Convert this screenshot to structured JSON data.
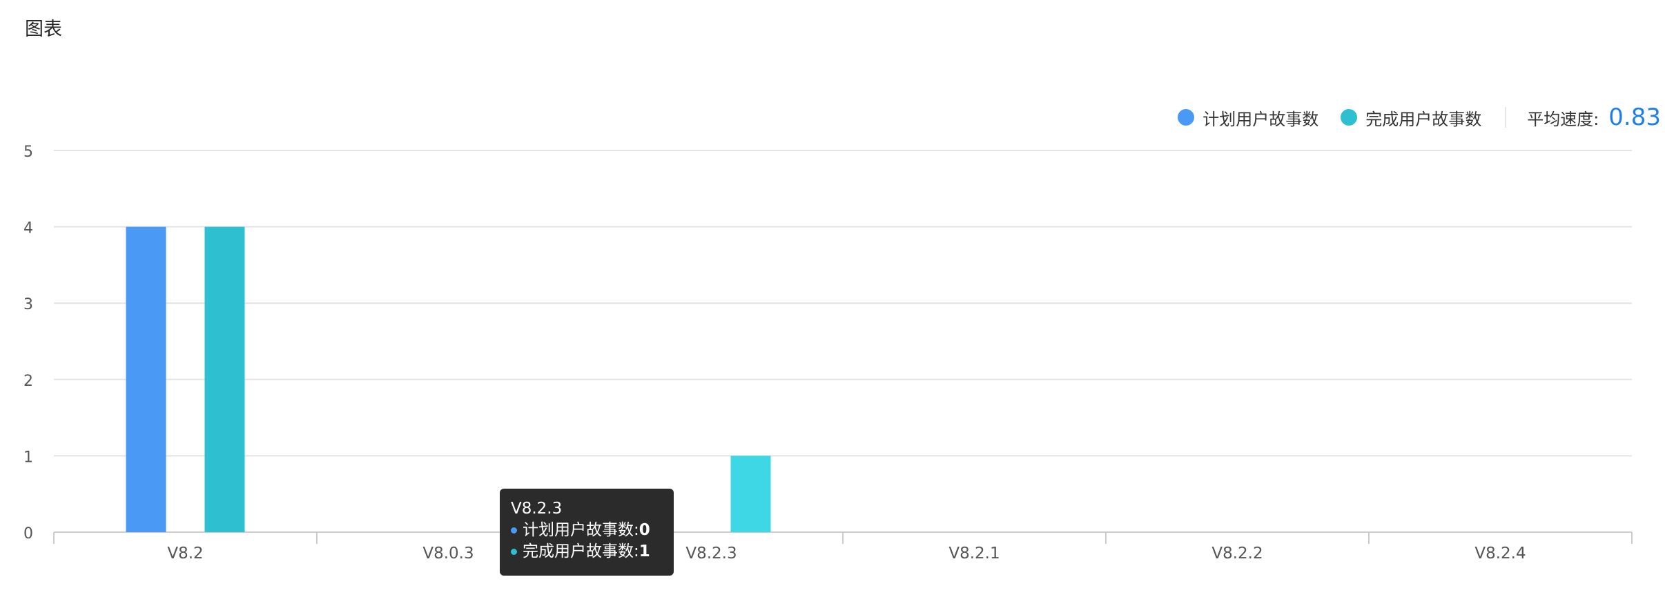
{
  "panel": {
    "title": "图表"
  },
  "legend": {
    "velocity_label": "平均速度:",
    "velocity_value": "0.83"
  },
  "tooltip": {
    "title": "V8.2.3",
    "rows": [
      {
        "label": "计划用户故事数: ",
        "value": "0",
        "color": "#4a9af5"
      },
      {
        "label": "完成用户故事数: ",
        "value": "1",
        "color": "#2ec0d1"
      }
    ]
  },
  "chart_data": {
    "type": "bar",
    "categories": [
      "V8.2",
      "V8.0.3",
      "V8.2.3",
      "V8.2.1",
      "V8.2.2",
      "V8.2.4"
    ],
    "series": [
      {
        "name": "计划用户故事数",
        "values": [
          4,
          0,
          0,
          0,
          0,
          0
        ],
        "color": "#4a9af5"
      },
      {
        "name": "完成用户故事数",
        "values": [
          4,
          0,
          1,
          0,
          0,
          0
        ],
        "color": "#2ec0d1"
      }
    ],
    "highlight_category": "V8.2.3",
    "highlight_color": "#3dd7e6",
    "yticks": [
      0,
      1,
      2,
      3,
      4,
      5
    ],
    "ylim": [
      0,
      5
    ],
    "grid": true,
    "legend_position": "top-right"
  }
}
